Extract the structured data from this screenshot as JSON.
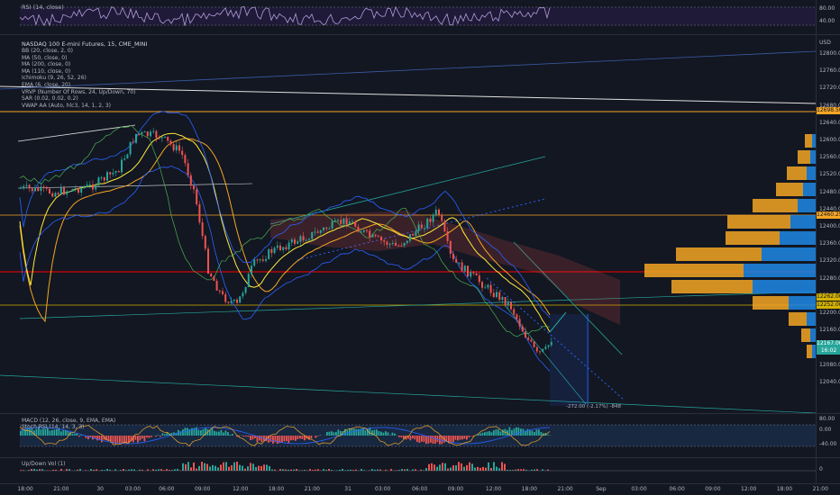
{
  "rsi": {
    "label": "RSI (14, close)",
    "ticks": [
      "80.00",
      "40.00"
    ]
  },
  "main": {
    "symbol_title": "NASDAQ 100 E-mini Futures, 15, CME_MINI",
    "indicators": [
      "BB (20, close, 2, 0)",
      "MA (50, close, 0)",
      "MA (200, close, 0)",
      "MA (110, close, 0)",
      "Ichimoku (9, 26, 52, 26)",
      "EMA (6, close, 20)",
      "VRVP (Number Of Rows, 24, Up/Down, 70)",
      "SAR (0.02, 0.02, 0.2)",
      "VWAP AA (Auto, hlc3, 14, 1, 2, 3)"
    ],
    "currency": "USD",
    "price_ticks": [
      "12800.00",
      "12760.00",
      "12720.00",
      "12680.00",
      "12640.00",
      "12600.00",
      "12560.00",
      "12520.00",
      "12480.00",
      "12440.00",
      "12400.00",
      "12360.00",
      "12320.00",
      "12280.00",
      "12240.00",
      "12200.00",
      "12160.00",
      "12120.00",
      "12080.00",
      "12040.00"
    ],
    "price_tags": {
      "top_orange": "12698.50",
      "mid_orange": "12460.25",
      "last_price": "12167.00",
      "last_time": "16:02",
      "lower_1": "12262.00",
      "lower_2": "12252.00"
    },
    "measure_label": "-272.00 (-2.17%) -848",
    "colors": {
      "up": "#26a69a",
      "down": "#ef5350",
      "orange": "#f5a623",
      "red_line": "#ff0000",
      "vrvp_up": "#1e88e5",
      "vrvp_down": "#f5a623"
    }
  },
  "macd": {
    "label": "MACD (12, 26, close, 9, EMA, EMA)",
    "ticks": [
      "80.00",
      "0.00",
      "-40.00"
    ]
  },
  "stoch": {
    "label": "Stoch RSI (14, 14, 3, 3)"
  },
  "volume": {
    "label": "Up/Down Vol (1)",
    "ticks": [
      "0"
    ]
  },
  "time_axis": [
    "18:00",
    "21:00",
    "30",
    "03:00",
    "06:00",
    "09:00",
    "12:00",
    "18:00",
    "21:00",
    "31",
    "03:00",
    "06:00",
    "09:00",
    "12:00",
    "18:00",
    "21:00",
    "Sep",
    "03:00",
    "06:00",
    "09:00",
    "12:00",
    "18:00",
    "21:00"
  ]
}
